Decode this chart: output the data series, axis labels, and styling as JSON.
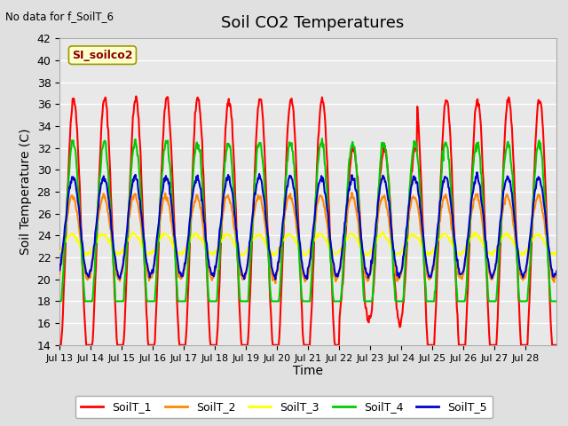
{
  "title": "Soil CO2 Temperatures",
  "title_fontsize": 13,
  "xlabel": "Time",
  "ylabel": "Soil Temperature (C)",
  "top_left_text": "No data for f_SoilT_6",
  "annotation_box": "SI_soilco2",
  "ylim": [
    14,
    42
  ],
  "yticks": [
    14,
    16,
    18,
    20,
    22,
    24,
    26,
    28,
    30,
    32,
    34,
    36,
    38,
    40,
    42
  ],
  "xtick_labels": [
    "Jul 13",
    "Jul 14",
    "Jul 15",
    "Jul 16",
    "Jul 17",
    "Jul 18",
    "Jul 19",
    "Jul 20",
    "Jul 21",
    "Jul 22",
    "Jul 23",
    "Jul 24",
    "Jul 25",
    "Jul 26",
    "Jul 27",
    "Jul 28"
  ],
  "background_color": "#e0e0e0",
  "plot_bg_color": "#e8e8e8",
  "grid_color": "#ffffff",
  "legend_entries": [
    "SoilT_1",
    "SoilT_2",
    "SoilT_3",
    "SoilT_4",
    "SoilT_5"
  ],
  "line_colors": [
    "#ff0000",
    "#ff8800",
    "#ffff00",
    "#00cc00",
    "#0000cc"
  ],
  "line_widths": [
    1.5,
    1.5,
    1.5,
    1.5,
    1.5
  ]
}
